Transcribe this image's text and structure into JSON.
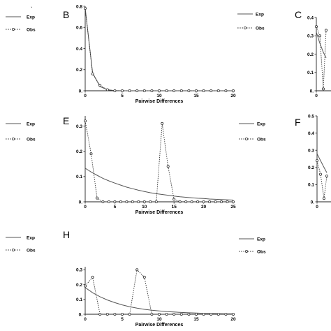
{
  "legend": {
    "exp_label": "Exp",
    "obs_label": "Obs"
  },
  "stray_mark": "`",
  "colors": {
    "exp": "#555555",
    "obs": "#333333",
    "axis": "#222222"
  },
  "chart_data": [
    {
      "panel": "B",
      "type": "line",
      "xlabel": "Pairwise Differences",
      "ylabel": "",
      "xlim": [
        0,
        20
      ],
      "ylim": [
        0,
        0.8
      ],
      "xticks": [
        0,
        5,
        10,
        15,
        20
      ],
      "yticks": [
        0,
        0.2,
        0.4,
        0.6,
        0.8
      ],
      "ytick_labels": [
        "0.",
        "0.2",
        "0.4",
        "0.6",
        "0.8"
      ],
      "series": [
        {
          "name": "Exp",
          "style": "solid",
          "x": [
            0,
            1,
            2,
            3,
            4,
            5,
            6,
            7,
            8,
            9,
            10,
            11,
            12,
            13,
            14,
            15,
            16,
            17,
            18,
            19,
            20
          ],
          "y": [
            0.78,
            0.17,
            0.04,
            0.01,
            0.002,
            0,
            0,
            0,
            0,
            0,
            0,
            0,
            0,
            0,
            0,
            0,
            0,
            0,
            0,
            0,
            0
          ]
        },
        {
          "name": "Obs",
          "style": "dotted-diamond",
          "x": [
            0,
            1,
            2,
            3,
            4,
            5,
            6,
            7,
            8,
            9,
            10,
            11,
            12,
            13,
            14,
            15,
            16,
            17,
            18,
            19,
            20
          ],
          "y": [
            0.78,
            0.16,
            0.05,
            0.01,
            0,
            0,
            0,
            0,
            0,
            0,
            0,
            0,
            0,
            0,
            0,
            0,
            0,
            0,
            0,
            0,
            0
          ]
        }
      ]
    },
    {
      "panel": "C",
      "type": "line",
      "xlabel": "",
      "ylabel": "",
      "partial": true,
      "visible_xrange": [
        0,
        1.4
      ],
      "xlim": [
        0,
        20
      ],
      "ylim": [
        0,
        0.4
      ],
      "xticks": [
        0
      ],
      "yticks": [
        0,
        0.1,
        0.2,
        0.3,
        0.4
      ],
      "ytick_labels": [
        "0.",
        "0.1",
        "0.2",
        "0.3",
        "0.4"
      ],
      "series": [
        {
          "name": "Exp",
          "style": "solid",
          "x": [
            0,
            0.5,
            1,
            1.4
          ],
          "y": [
            0.32,
            0.26,
            0.21,
            0.18
          ]
        },
        {
          "name": "Obs",
          "style": "dotted-diamond",
          "x": [
            0,
            0.5,
            1,
            1.4
          ],
          "y": [
            0.35,
            0.3,
            0.01,
            0.33
          ]
        }
      ]
    },
    {
      "panel": "E",
      "type": "line",
      "xlabel": "Pairwise Differences",
      "ylabel": "",
      "xlim": [
        0,
        25
      ],
      "ylim": [
        0,
        0.34
      ],
      "xticks": [
        0,
        5,
        10,
        15,
        20,
        25
      ],
      "yticks": [
        0,
        0.1,
        0.2,
        0.3
      ],
      "ytick_labels": [
        "0.",
        "0.1",
        "0.2",
        "0.3"
      ],
      "series": [
        {
          "name": "Exp",
          "style": "solid",
          "x": [
            0,
            1,
            2,
            3,
            4,
            5,
            6,
            7,
            8,
            9,
            10,
            11,
            12,
            13,
            14,
            15,
            16,
            17,
            18,
            19,
            20,
            21,
            22,
            23,
            24,
            25
          ],
          "y": [
            0.133,
            0.118,
            0.105,
            0.093,
            0.083,
            0.074,
            0.066,
            0.058,
            0.052,
            0.046,
            0.041,
            0.036,
            0.032,
            0.029,
            0.026,
            0.023,
            0.02,
            0.018,
            0.016,
            0.014,
            0.013,
            0.011,
            0.01,
            0.009,
            0.008,
            0.007
          ]
        },
        {
          "name": "Obs",
          "style": "dotted-diamond",
          "x": [
            0,
            1,
            2,
            3,
            4,
            5,
            6,
            7,
            8,
            9,
            10,
            11,
            12,
            13,
            14,
            15,
            16,
            17,
            18,
            19,
            20,
            21,
            22,
            23,
            24,
            25
          ],
          "y": [
            0.32,
            0.19,
            0.015,
            0,
            0,
            0,
            0,
            0,
            0,
            0,
            0,
            0,
            0,
            0.31,
            0.14,
            0.01,
            0,
            0,
            0,
            0,
            0,
            0,
            0,
            0,
            0,
            0
          ]
        }
      ]
    },
    {
      "panel": "F",
      "type": "line",
      "xlabel": "",
      "ylabel": "",
      "partial": true,
      "visible_xrange": [
        0,
        1.4
      ],
      "xlim": [
        0,
        20
      ],
      "ylim": [
        0,
        0.5
      ],
      "xticks": [
        0
      ],
      "yticks": [
        0,
        0.1,
        0.2,
        0.3,
        0.4,
        0.5
      ],
      "ytick_labels": [
        "0.",
        "0.1",
        "0.2",
        "0.3",
        "0.4",
        "0.5"
      ],
      "series": [
        {
          "name": "Exp",
          "style": "solid",
          "x": [
            0,
            0.5,
            1,
            1.4
          ],
          "y": [
            0.28,
            0.24,
            0.2,
            0.17
          ]
        },
        {
          "name": "Obs",
          "style": "dotted-diamond",
          "x": [
            0,
            0.5,
            1,
            1.4
          ],
          "y": [
            0.24,
            0.16,
            0.02,
            0.15
          ]
        }
      ]
    },
    {
      "panel": "H",
      "type": "line",
      "xlabel": "Pairwise Differences",
      "ylabel": "",
      "xlim": [
        0,
        20
      ],
      "ylim": [
        0,
        0.32
      ],
      "xticks": [
        0,
        5,
        10,
        15,
        20
      ],
      "yticks": [
        0,
        0.1,
        0.2,
        0.3
      ],
      "ytick_labels": [
        "0.",
        "0.1",
        "0.2",
        "0.3"
      ],
      "series": [
        {
          "name": "Exp",
          "style": "solid",
          "x": [
            0,
            1,
            2,
            3,
            4,
            5,
            6,
            7,
            8,
            9,
            10,
            11,
            12,
            13,
            14,
            15,
            16,
            17,
            18,
            19,
            20
          ],
          "y": [
            0.18,
            0.145,
            0.118,
            0.096,
            0.078,
            0.063,
            0.051,
            0.041,
            0.033,
            0.027,
            0.022,
            0.018,
            0.015,
            0.012,
            0.01,
            0.008,
            0.006,
            0.005,
            0.004,
            0.003,
            0.003
          ]
        },
        {
          "name": "Obs",
          "style": "dotted-diamond",
          "x": [
            0,
            1,
            2,
            3,
            4,
            5,
            6,
            7,
            8,
            9,
            10,
            11,
            12,
            13,
            14,
            15,
            16,
            17,
            18,
            19,
            20
          ],
          "y": [
            0.19,
            0.25,
            0,
            0,
            0,
            0,
            0,
            0.3,
            0.25,
            0,
            0,
            0,
            0,
            0,
            0,
            0,
            0,
            0,
            0,
            0,
            0
          ]
        }
      ]
    }
  ]
}
